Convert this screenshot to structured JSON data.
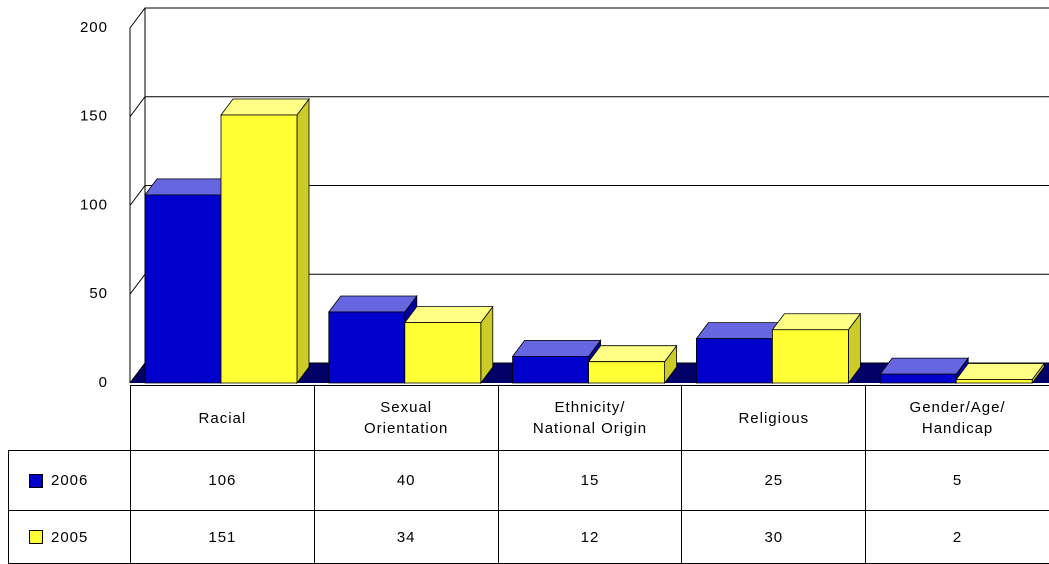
{
  "chart_data": {
    "type": "bar",
    "categories": [
      "Racial",
      "Sexual\nOrientation",
      "Ethnicity/\nNational Origin",
      "Religious",
      "Gender/Age/\nHandicap"
    ],
    "series": [
      {
        "name": "2006",
        "color": "#0000cc",
        "values": [
          106,
          40,
          15,
          25,
          5
        ]
      },
      {
        "name": "2005",
        "color": "#ffff33",
        "values": [
          151,
          34,
          12,
          30,
          2
        ]
      }
    ],
    "ylim": [
      0,
      200
    ],
    "yticks": [
      0,
      50,
      100,
      150,
      200
    ],
    "grid": true
  }
}
